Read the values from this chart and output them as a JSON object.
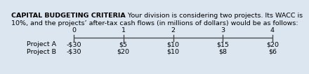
{
  "title_bold": "CAPITAL BUDGETING CRITERIA",
  "title_normal": " Your division is considering two projects. Its WACC is\n10%, and the projects’ after-tax cash flows (in millions of dollars) would be as follows:",
  "timeline_points": [
    "0",
    "1",
    "2",
    "3",
    "4"
  ],
  "project_a_label": "Project A",
  "project_b_label": "Project B",
  "project_a_values": [
    "-$30",
    "$5",
    "$10",
    "$15",
    "$20"
  ],
  "project_b_values": [
    "-$30",
    "$20",
    "$10",
    "$8",
    "$6"
  ],
  "bg_color": "#dce6f1",
  "text_color": "#000000",
  "line_color": "#4a4a4a",
  "title_fontsize": 6.8,
  "label_fontsize": 6.8,
  "fig_width": 3.87,
  "fig_height": 0.86
}
